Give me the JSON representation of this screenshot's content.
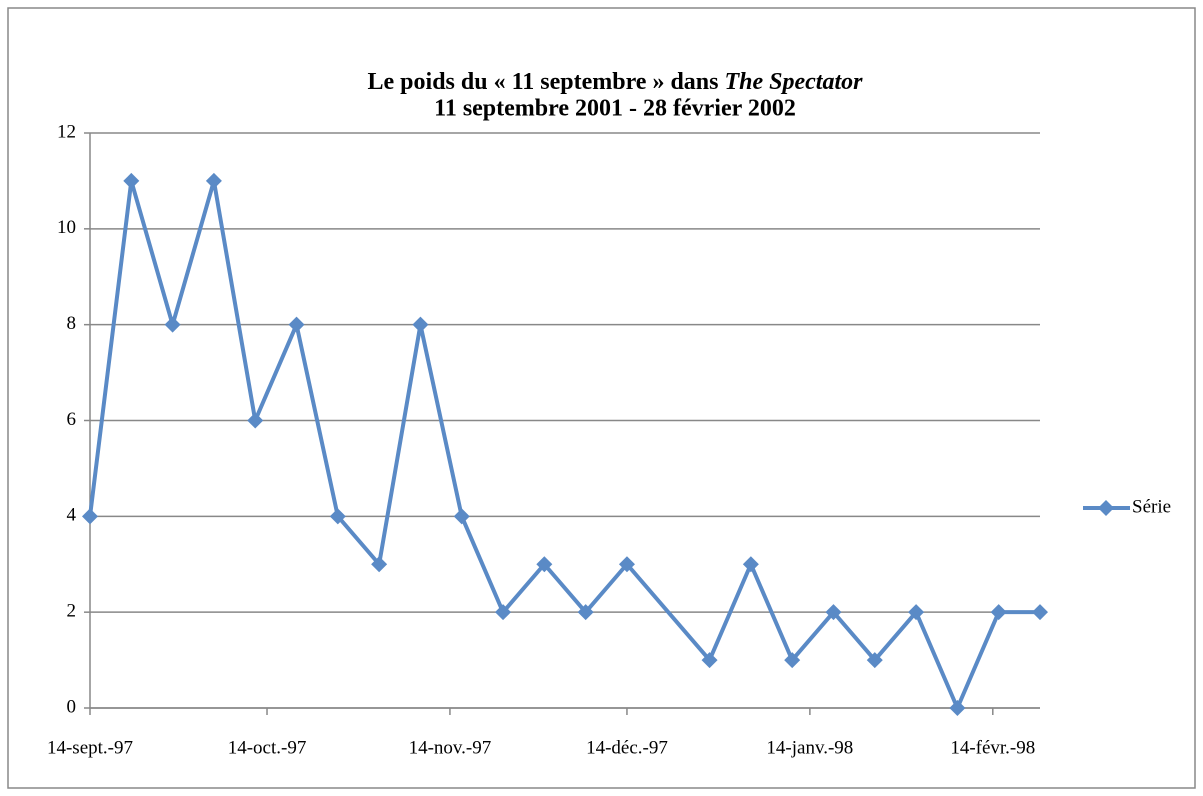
{
  "chart_data": {
    "type": "line",
    "title": "Le poids du « 11 septembre »  dans",
    "title_emphasis": "The Spectator",
    "subtitle": "11 septembre 2001 - 28 février 2002",
    "x": [
      "1997-09-14",
      "1997-09-21",
      "1997-09-28",
      "1997-10-05",
      "1997-10-12",
      "1997-10-19",
      "1997-10-26",
      "1997-11-02",
      "1997-11-09",
      "1997-11-16",
      "1997-11-23",
      "1997-11-30",
      "1997-12-07",
      "1997-12-14",
      "1997-12-28",
      "1998-01-04",
      "1998-01-11",
      "1998-01-18",
      "1998-01-25",
      "1998-02-01",
      "1998-02-08",
      "1998-02-15",
      "1998-02-22"
    ],
    "series": [
      {
        "name": "Série",
        "color": "#5a8ac6",
        "values": [
          4,
          11,
          8,
          11,
          6,
          8,
          4,
          3,
          8,
          4,
          2,
          3,
          2,
          3,
          1,
          3,
          1,
          2,
          1,
          2,
          0,
          2,
          2
        ]
      }
    ],
    "xlim": [
      "1997-09-14",
      "1998-02-22"
    ],
    "xticks": [
      {
        "value": "1997-09-14",
        "label": "14-sept.-97"
      },
      {
        "value": "1997-10-14",
        "label": "14-oct.-97"
      },
      {
        "value": "1997-11-14",
        "label": "14-nov.-97"
      },
      {
        "value": "1997-12-14",
        "label": "14-déc.-97"
      },
      {
        "value": "1998-01-14",
        "label": "14-janv.-98"
      },
      {
        "value": "1998-02-14",
        "label": "14-févr.-98"
      }
    ],
    "ylim": [
      0,
      12
    ],
    "yticks": [
      0,
      2,
      4,
      6,
      8,
      10,
      12
    ],
    "grid": true,
    "legend": "right"
  }
}
